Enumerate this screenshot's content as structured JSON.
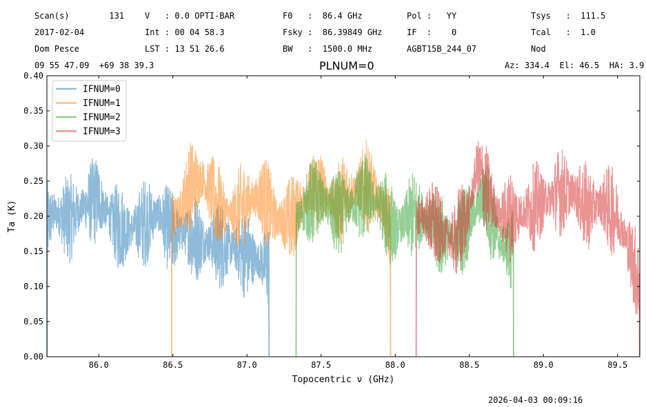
{
  "header": {
    "scan": "Scan(s)        131",
    "date": "2017-02-04",
    "observer": "Dom Pesce",
    "coords": "09 55 47.09  +69 38 39.3",
    "velocity": "V   : 0.0 OPTI-BAR",
    "int_time": "Int : 00 04 58.3",
    "lst": "LST : 13 51 26.6",
    "f0": "F0   :  86.4 GHz",
    "fsky": "Fsky :  86.39849 GHz",
    "bw": "BW   :  1500.0 MHz",
    "pol": "Pol :   YY",
    "if": "IF  :    0",
    "project": "AGBT15B_244_07",
    "tsys": "Tsys   :  111.5",
    "tcal": "Tcal   :  1.0",
    "mode": "Nod",
    "azelha": "Az: 334.4  El: 46.5  HA: 3.9"
  },
  "footer": {
    "timestamp": "2026-04-03 00:09:16"
  },
  "chart_data": {
    "type": "line",
    "title": "PLNUM=0",
    "xlabel": "Topocentric ν (GHz)",
    "ylabel": "Ta (K)",
    "xlim": [
      85.65,
      89.65
    ],
    "ylim": [
      0.0,
      0.4
    ],
    "xticks": [
      "86.0",
      "86.5",
      "87.0",
      "87.5",
      "88.0",
      "88.5",
      "89.0",
      "89.5"
    ],
    "yticks": [
      "0.00",
      "0.05",
      "0.10",
      "0.15",
      "0.20",
      "0.25",
      "0.30",
      "0.35",
      "0.40"
    ],
    "legend_position": "top-left",
    "series": [
      {
        "name": "IFNUM=0",
        "color": "#1f77b4",
        "x": [
          85.65,
          85.7,
          85.8,
          85.9,
          86.0,
          86.1,
          86.2,
          86.3,
          86.4,
          86.49,
          86.6,
          86.7,
          86.8,
          86.9,
          87.0,
          87.1,
          87.15
        ],
        "y": [
          0.19,
          0.205,
          0.195,
          0.215,
          0.225,
          0.19,
          0.18,
          0.19,
          0.205,
          0.175,
          0.175,
          0.165,
          0.16,
          0.155,
          0.145,
          0.135,
          0.13
        ]
      },
      {
        "name": "IFNUM=1",
        "color": "#ff7f0e",
        "x": [
          86.49,
          86.55,
          86.6,
          86.7,
          86.8,
          86.9,
          87.0,
          87.1,
          87.2,
          87.3,
          87.4,
          87.5,
          87.6,
          87.7,
          87.8,
          87.9,
          87.97
        ],
        "y": [
          0.19,
          0.21,
          0.24,
          0.255,
          0.215,
          0.2,
          0.22,
          0.23,
          0.195,
          0.195,
          0.23,
          0.24,
          0.215,
          0.235,
          0.245,
          0.22,
          0.18
        ]
      },
      {
        "name": "IFNUM=2",
        "color": "#2ca02c",
        "x": [
          87.33,
          87.4,
          87.5,
          87.6,
          87.7,
          87.8,
          87.9,
          88.0,
          88.1,
          88.2,
          88.3,
          88.4,
          88.5,
          88.6,
          88.7,
          88.8
        ],
        "y": [
          0.19,
          0.215,
          0.225,
          0.2,
          0.215,
          0.23,
          0.215,
          0.18,
          0.2,
          0.2,
          0.175,
          0.165,
          0.195,
          0.23,
          0.165,
          0.145
        ]
      },
      {
        "name": "IFNUM=3",
        "color": "#d62728",
        "x": [
          88.14,
          88.2,
          88.3,
          88.4,
          88.5,
          88.55,
          88.6,
          88.7,
          88.8,
          88.9,
          89.0,
          89.1,
          89.2,
          89.3,
          89.4,
          89.5,
          89.6,
          89.65
        ],
        "y": [
          0.2,
          0.2,
          0.18,
          0.165,
          0.21,
          0.27,
          0.245,
          0.2,
          0.2,
          0.21,
          0.22,
          0.235,
          0.235,
          0.21,
          0.22,
          0.2,
          0.14,
          0.1
        ]
      }
    ]
  }
}
